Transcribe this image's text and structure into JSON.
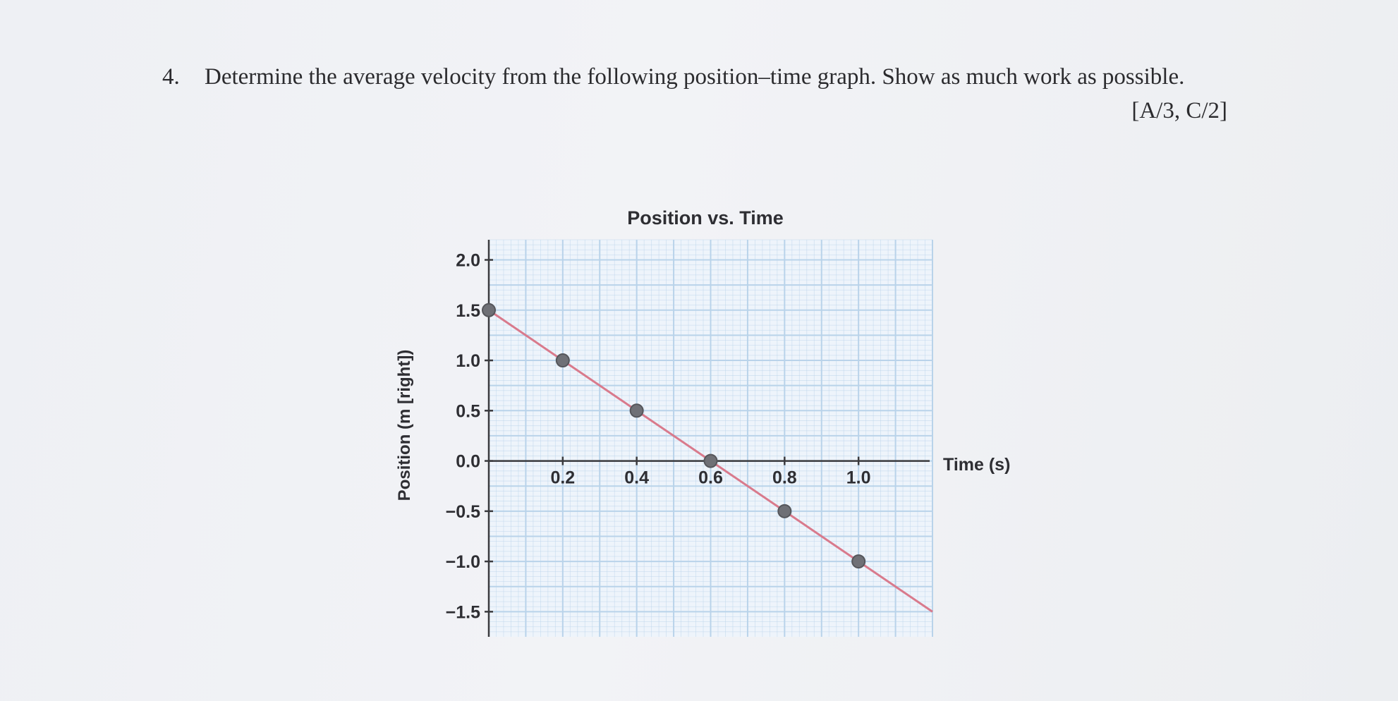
{
  "question": {
    "number": "4.",
    "text": "Determine the average velocity from the following position–time graph. Show as much work as possible.",
    "marks": "[A/3, C/2]"
  },
  "chart_data": {
    "type": "line",
    "title": "Position vs. Time",
    "xlabel": "Time (s)",
    "ylabel": "Position (m [right])",
    "xlim": [
      0,
      1.2
    ],
    "ylim": [
      -1.75,
      2.2
    ],
    "x_ticks": [
      "0.2",
      "0.4",
      "0.6",
      "0.8",
      "1.0"
    ],
    "y_ticks": [
      "2.0",
      "1.5",
      "1.0",
      "0.5",
      "0.0",
      "−0.5",
      "−1.0",
      "−1.5"
    ],
    "grid": true,
    "series": [
      {
        "x": [
          0.0,
          0.2,
          0.4,
          0.6,
          0.8,
          1.0
        ],
        "y": [
          1.5,
          1.0,
          0.5,
          0.0,
          -0.5,
          -1.0
        ]
      }
    ],
    "trend_line": {
      "x": [
        0.0,
        1.2
      ],
      "y": [
        1.5,
        -1.5
      ]
    },
    "colors": {
      "grid": "#b9d3ea",
      "line": "#d97a8c",
      "point": "#6f7076",
      "axis": "#3a3a3e"
    }
  }
}
